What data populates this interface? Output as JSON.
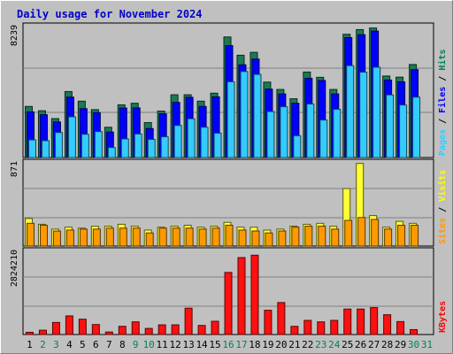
{
  "chart_data": {
    "type": "bar",
    "title": "Daily usage for November 2024",
    "categories": [
      "1",
      "2",
      "3",
      "4",
      "5",
      "6",
      "7",
      "8",
      "9",
      "10",
      "11",
      "12",
      "13",
      "14",
      "15",
      "16",
      "17",
      "18",
      "19",
      "20",
      "21",
      "22",
      "23",
      "24",
      "25",
      "26",
      "27",
      "28",
      "29",
      "30",
      "31"
    ],
    "weekend_days": [
      "2",
      "3",
      "9",
      "10",
      "16",
      "17",
      "23",
      "24",
      "30",
      "31"
    ],
    "panels": [
      {
        "id": "hits",
        "max_label": "8239",
        "ymax": 8239,
        "legend": [
          "Pages",
          "Files",
          "Hits"
        ],
        "legend_colors": [
          "#33ccff",
          "#0000ff",
          "#00805c"
        ],
        "series": [
          {
            "name": "Hits",
            "color": "#1a7a52",
            "values": [
              3220,
              2950,
              2460,
              4150,
              3550,
              3020,
              1920,
              3320,
              3420,
              2210,
              2930,
              3950,
              3950,
              3550,
              4050,
              7560,
              6420,
              6600,
              4740,
              4280,
              3700,
              5370,
              5040,
              4280,
              7730,
              8020,
              8120,
              5120,
              5050,
              5840,
              0
            ]
          },
          {
            "name": "Files",
            "color": "#0000ff",
            "values": [
              2880,
              2700,
              2250,
              3800,
              3080,
              2830,
              1620,
              3120,
              3130,
              1840,
              2760,
              3470,
              3790,
              3220,
              3820,
              7020,
              5820,
              6180,
              4300,
              4000,
              3420,
              4980,
              4840,
              4000,
              7520,
              7700,
              7930,
              4870,
              4760,
              5520,
              0
            ]
          },
          {
            "name": "Pages",
            "color": "#33ccff",
            "values": [
              1130,
              1080,
              1590,
              2570,
              1480,
              1650,
              650,
              1190,
              1500,
              1160,
              1320,
              2030,
              2450,
              1920,
              1550,
              4760,
              5400,
              5220,
              2900,
              3200,
              1390,
              3370,
              2370,
              3040,
              5770,
              5360,
              5670,
              3940,
              3310,
              3800,
              0
            ]
          }
        ]
      },
      {
        "id": "visits",
        "max_label": "871",
        "ymax": 871,
        "legend": [
          "Sites",
          "Visits"
        ],
        "legend_colors": [
          "#ff9900",
          "#ffff00"
        ],
        "series": [
          {
            "name": "Visits",
            "color": "#ffff33",
            "values": [
              290,
              230,
              180,
              200,
              190,
              210,
              210,
              230,
              210,
              170,
              200,
              210,
              220,
              200,
              210,
              250,
              200,
              200,
              170,
              180,
              210,
              230,
              240,
              210,
              600,
              860,
              320,
              200,
              260,
              240,
              0
            ]
          },
          {
            "name": "Sites",
            "color": "#ff9900",
            "values": [
              240,
              220,
              160,
              170,
              180,
              180,
              190,
              190,
              190,
              140,
              190,
              190,
              190,
              180,
              190,
              220,
              170,
              160,
              140,
              160,
              200,
              210,
              210,
              180,
              270,
              300,
              280,
              180,
              220,
              220,
              0
            ]
          }
        ]
      },
      {
        "id": "kbytes",
        "max_label": "2824210",
        "ymax": 2824210,
        "legend": [
          "KBytes"
        ],
        "legend_colors": [
          "#ff0000"
        ],
        "series": [
          {
            "name": "KBytes",
            "color": "#ff1010",
            "values": [
              90000,
              160000,
              420000,
              640000,
              530000,
              350000,
              100000,
              290000,
              440000,
              220000,
              340000,
              340000,
              900000,
              320000,
              460000,
              2100000,
              2600000,
              2680000,
              830000,
              1090000,
              290000,
              490000,
              440000,
              490000,
              870000,
              870000,
              920000,
              680000,
              450000,
              180000,
              0
            ]
          }
        ]
      }
    ]
  }
}
